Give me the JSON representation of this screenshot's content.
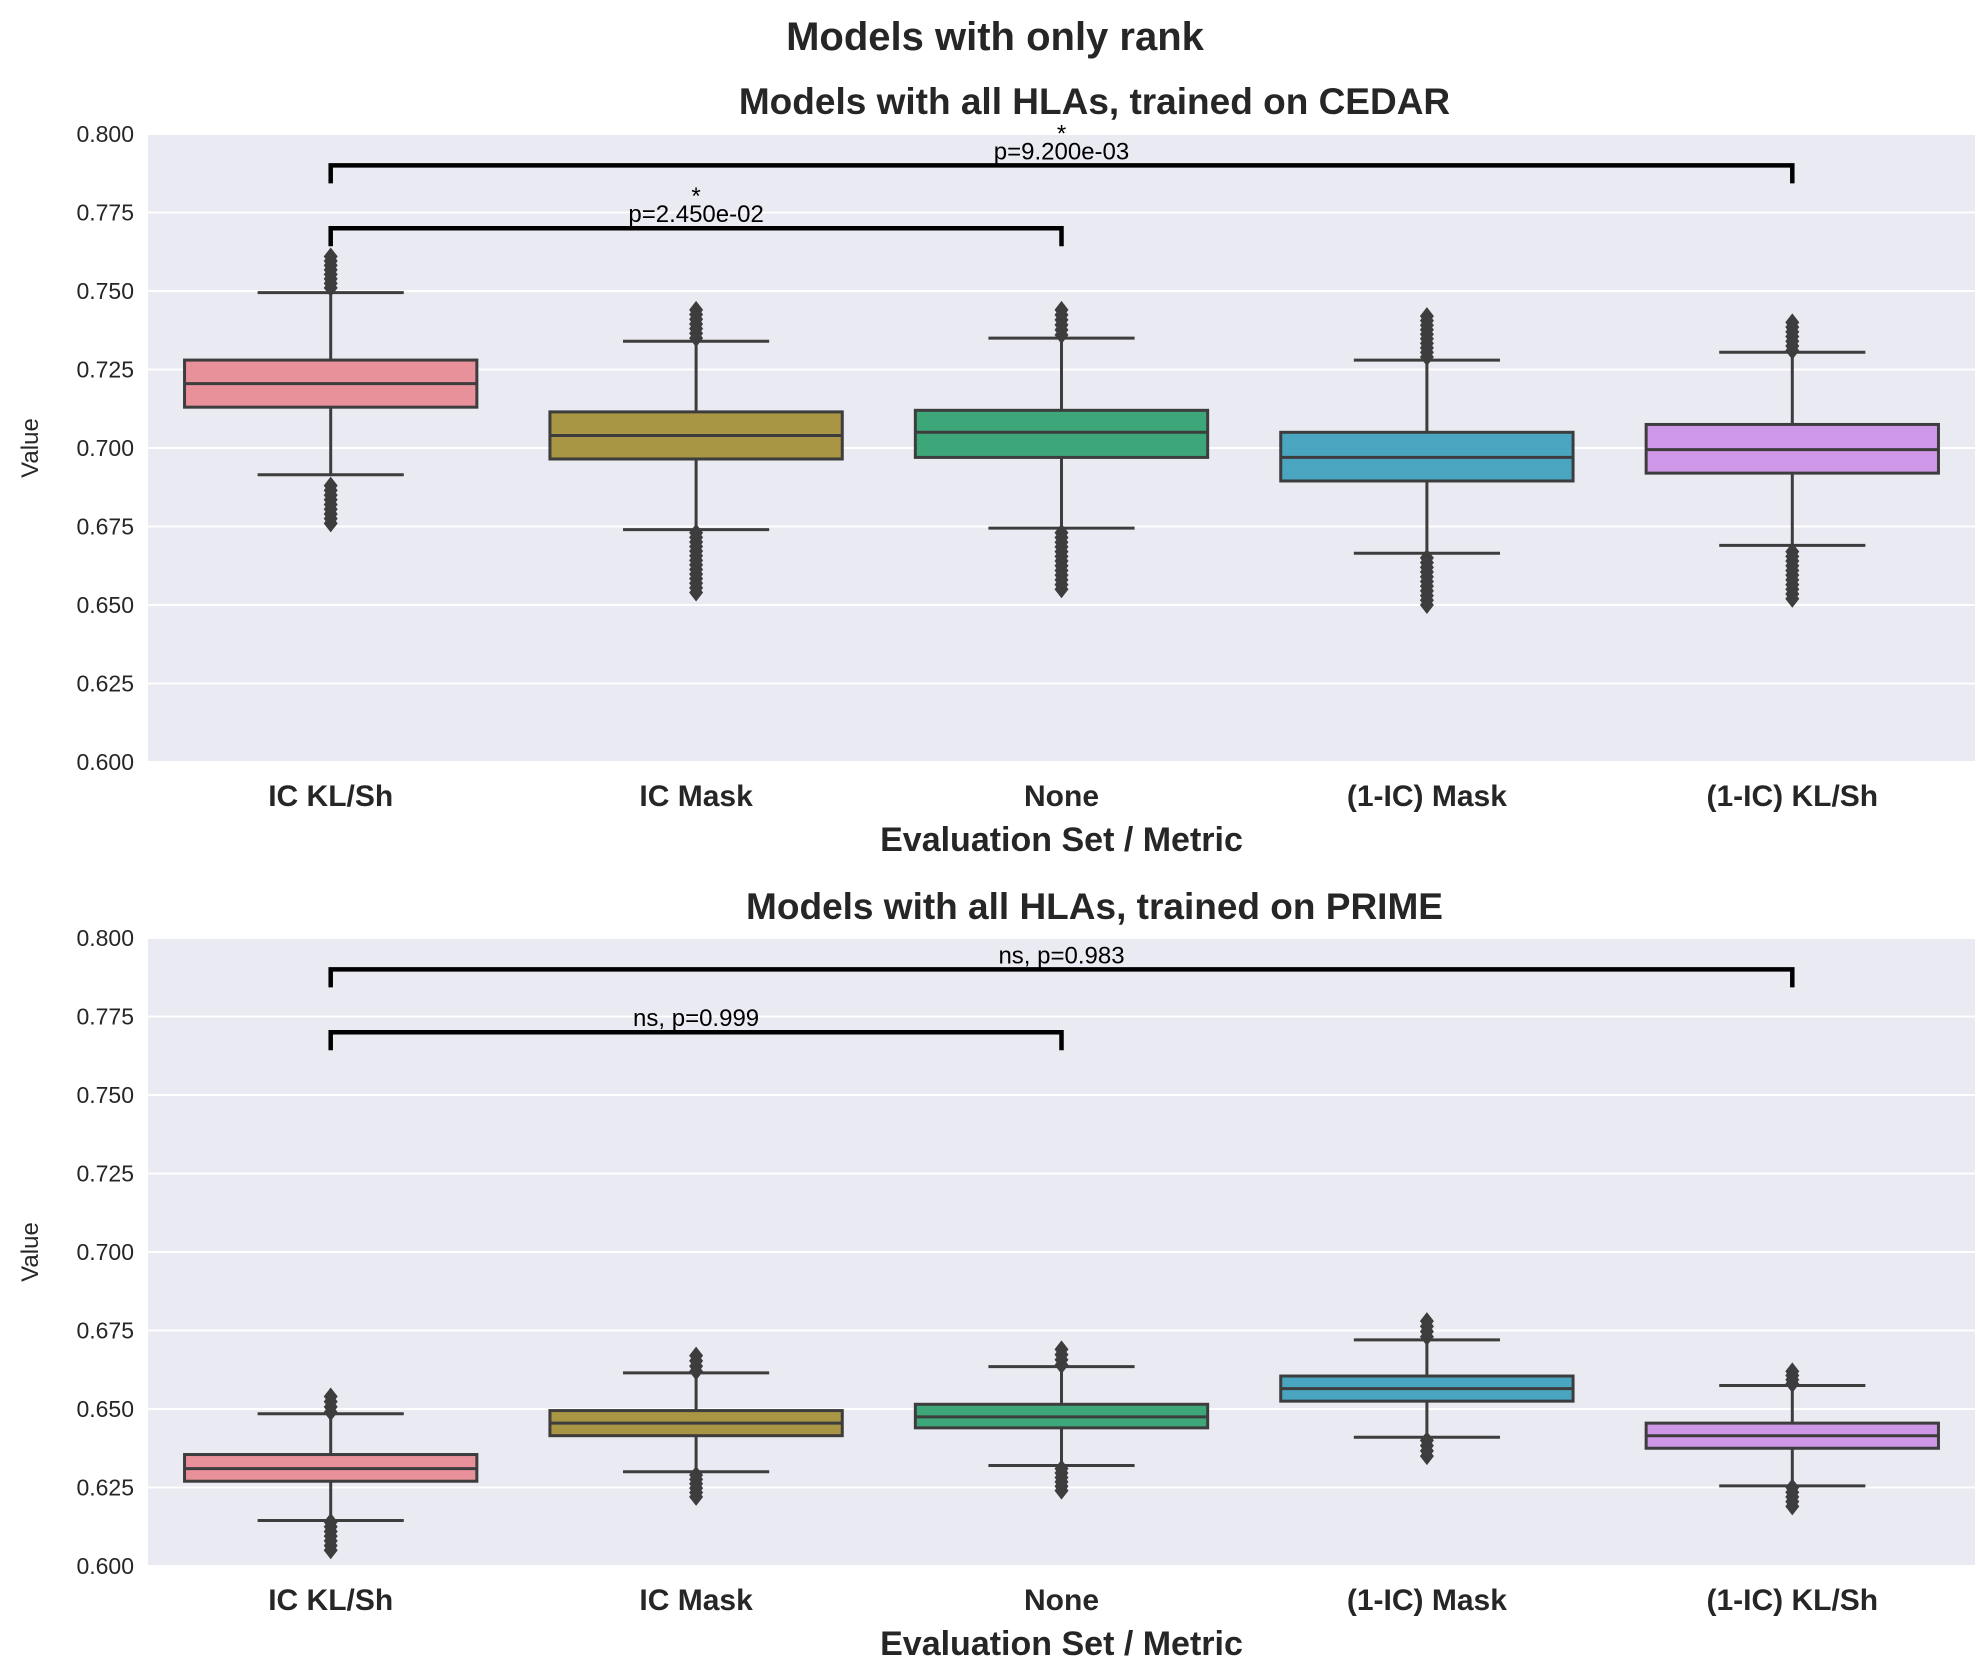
{
  "figure": {
    "suptitle": "Models with only rank"
  },
  "colors": {
    "panel_bg": "#eaeaf2",
    "grid": "#ffffff",
    "line": "#3d3d3d",
    "bracket": "#000000",
    "boxes": [
      "#e8919b",
      "#a89644",
      "#3ea77a",
      "#4aa6c0",
      "#cf97e8"
    ]
  },
  "chart_data": [
    {
      "type": "box",
      "title": "Models with all HLAs, trained on CEDAR",
      "xlabel": "Evaluation Set / Metric",
      "ylabel": "Value",
      "ylim": [
        0.6,
        0.8
      ],
      "yticks": [
        "0.600",
        "0.625",
        "0.650",
        "0.675",
        "0.700",
        "0.725",
        "0.750",
        "0.775",
        "0.800"
      ],
      "grid": true,
      "categories": [
        "IC KL/Sh",
        "IC Mask",
        "None",
        "(1-IC) Mask",
        "(1-IC) KL/Sh"
      ],
      "boxes": [
        {
          "q1": 0.713,
          "median": 0.7205,
          "q3": 0.728,
          "whislo": 0.6915,
          "whishi": 0.7495,
          "fliers_low": [
            0.676,
            0.688
          ],
          "fliers_high": [
            0.751,
            0.761
          ]
        },
        {
          "q1": 0.6965,
          "median": 0.704,
          "q3": 0.7115,
          "whislo": 0.674,
          "whishi": 0.734,
          "fliers_low": [
            0.654,
            0.673
          ],
          "fliers_high": [
            0.735,
            0.744
          ]
        },
        {
          "q1": 0.697,
          "median": 0.705,
          "q3": 0.712,
          "whislo": 0.6745,
          "whishi": 0.735,
          "fliers_low": [
            0.655,
            0.673
          ],
          "fliers_high": [
            0.736,
            0.744
          ]
        },
        {
          "q1": 0.6895,
          "median": 0.697,
          "q3": 0.705,
          "whislo": 0.6665,
          "whishi": 0.728,
          "fliers_low": [
            0.65,
            0.665
          ],
          "fliers_high": [
            0.729,
            0.742
          ]
        },
        {
          "q1": 0.692,
          "median": 0.6995,
          "q3": 0.7075,
          "whislo": 0.669,
          "whishi": 0.7305,
          "fliers_low": [
            0.652,
            0.667
          ],
          "fliers_high": [
            0.731,
            0.74
          ]
        }
      ],
      "annotations": [
        {
          "from": 0,
          "to": 2,
          "y": 0.77,
          "star": "*",
          "label": "p=2.450e-02"
        },
        {
          "from": 0,
          "to": 4,
          "y": 0.79,
          "star": "*",
          "label": "p=9.200e-03"
        }
      ]
    },
    {
      "type": "box",
      "title": "Models with all HLAs, trained on PRIME",
      "xlabel": "Evaluation Set / Metric",
      "ylabel": "Value",
      "ylim": [
        0.6,
        0.8
      ],
      "yticks": [
        "0.600",
        "0.625",
        "0.650",
        "0.675",
        "0.700",
        "0.725",
        "0.750",
        "0.775",
        "0.800"
      ],
      "grid": true,
      "categories": [
        "IC KL/Sh",
        "IC Mask",
        "None",
        "(1-IC) Mask",
        "(1-IC) KL/Sh"
      ],
      "boxes": [
        {
          "q1": 0.627,
          "median": 0.631,
          "q3": 0.6355,
          "whislo": 0.6145,
          "whishi": 0.6485,
          "fliers_low": [
            0.605,
            0.614
          ],
          "fliers_high": [
            0.649,
            0.654
          ]
        },
        {
          "q1": 0.6415,
          "median": 0.6455,
          "q3": 0.6495,
          "whislo": 0.63,
          "whishi": 0.6615,
          "fliers_low": [
            0.622,
            0.629
          ],
          "fliers_high": [
            0.662,
            0.667
          ]
        },
        {
          "q1": 0.644,
          "median": 0.6475,
          "q3": 0.6515,
          "whislo": 0.632,
          "whishi": 0.6635,
          "fliers_low": [
            0.624,
            0.631
          ],
          "fliers_high": [
            0.664,
            0.669
          ]
        },
        {
          "q1": 0.6525,
          "median": 0.6565,
          "q3": 0.6605,
          "whislo": 0.641,
          "whishi": 0.672,
          "fliers_low": [
            0.635,
            0.64
          ],
          "fliers_high": [
            0.673,
            0.678
          ]
        },
        {
          "q1": 0.6375,
          "median": 0.6415,
          "q3": 0.6455,
          "whislo": 0.6255,
          "whishi": 0.6575,
          "fliers_low": [
            0.619,
            0.625
          ],
          "fliers_high": [
            0.658,
            0.662
          ]
        }
      ],
      "annotations": [
        {
          "from": 0,
          "to": 2,
          "y": 0.77,
          "star": "",
          "label": "ns, p=0.999"
        },
        {
          "from": 0,
          "to": 4,
          "y": 0.79,
          "star": "",
          "label": "ns, p=0.983"
        }
      ]
    }
  ]
}
